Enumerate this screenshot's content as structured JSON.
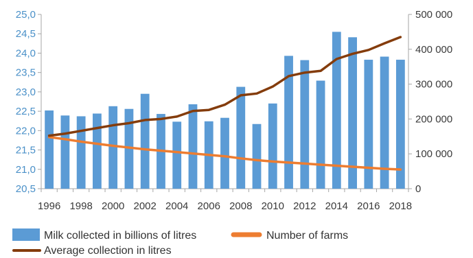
{
  "chart_data": {
    "type": "bar",
    "x": [
      1996,
      1997,
      1998,
      1999,
      2000,
      2001,
      2002,
      2003,
      2004,
      2005,
      2006,
      2007,
      2008,
      2009,
      2010,
      2011,
      2012,
      2013,
      2014,
      2015,
      2016,
      2017,
      2018
    ],
    "x_tick_labels": [
      "1996",
      "1998",
      "2000",
      "2002",
      "2004",
      "2006",
      "2008",
      "2010",
      "2012",
      "2014",
      "2016",
      "2018"
    ],
    "series": [
      {
        "name": "Milk collected in billions of litres",
        "kind": "bar",
        "axis": "left",
        "color": "#5b9bd5",
        "values": [
          22.52,
          22.39,
          22.37,
          22.44,
          22.63,
          22.56,
          22.95,
          22.43,
          22.23,
          22.68,
          22.24,
          22.33,
          23.13,
          22.17,
          22.7,
          23.93,
          23.82,
          23.29,
          24.55,
          24.41,
          23.83,
          23.91,
          23.83
        ]
      },
      {
        "name": "Number of farms",
        "kind": "line",
        "axis": "right",
        "color": "#ed7d31",
        "values": [
          148000,
          142000,
          135000,
          129000,
          123000,
          118000,
          113000,
          109000,
          105000,
          101000,
          97000,
          93000,
          87000,
          82000,
          78000,
          75000,
          72000,
          69000,
          66000,
          63000,
          60000,
          57000,
          55000
        ]
      },
      {
        "name": "Average collection in litres",
        "kind": "line",
        "axis": "right",
        "color": "#843c0c",
        "values": [
          152000,
          158000,
          166000,
          174000,
          182000,
          188000,
          197000,
          200000,
          207000,
          223000,
          226000,
          241000,
          268000,
          273000,
          293000,
          323000,
          333000,
          338000,
          372000,
          387000,
          398000,
          417000,
          435000
        ]
      }
    ],
    "y_left": {
      "range": [
        20.5,
        25.0
      ],
      "ticks": [
        20.5,
        21.0,
        21.5,
        22.0,
        22.5,
        23.0,
        23.5,
        24.0,
        24.5,
        25.0
      ],
      "tick_labels": [
        "20,5",
        "21,0",
        "21,5",
        "22,0",
        "22,5",
        "23,0",
        "23,5",
        "24,0",
        "24,5",
        "25,0"
      ]
    },
    "y_right": {
      "range": [
        0,
        500000
      ],
      "ticks": [
        0,
        100000,
        200000,
        300000,
        400000,
        500000
      ],
      "tick_labels": [
        "0",
        "100 000",
        "200 000",
        "300 000",
        "400 000",
        "500 000"
      ]
    },
    "grid": false,
    "legend_position": "bottom"
  }
}
